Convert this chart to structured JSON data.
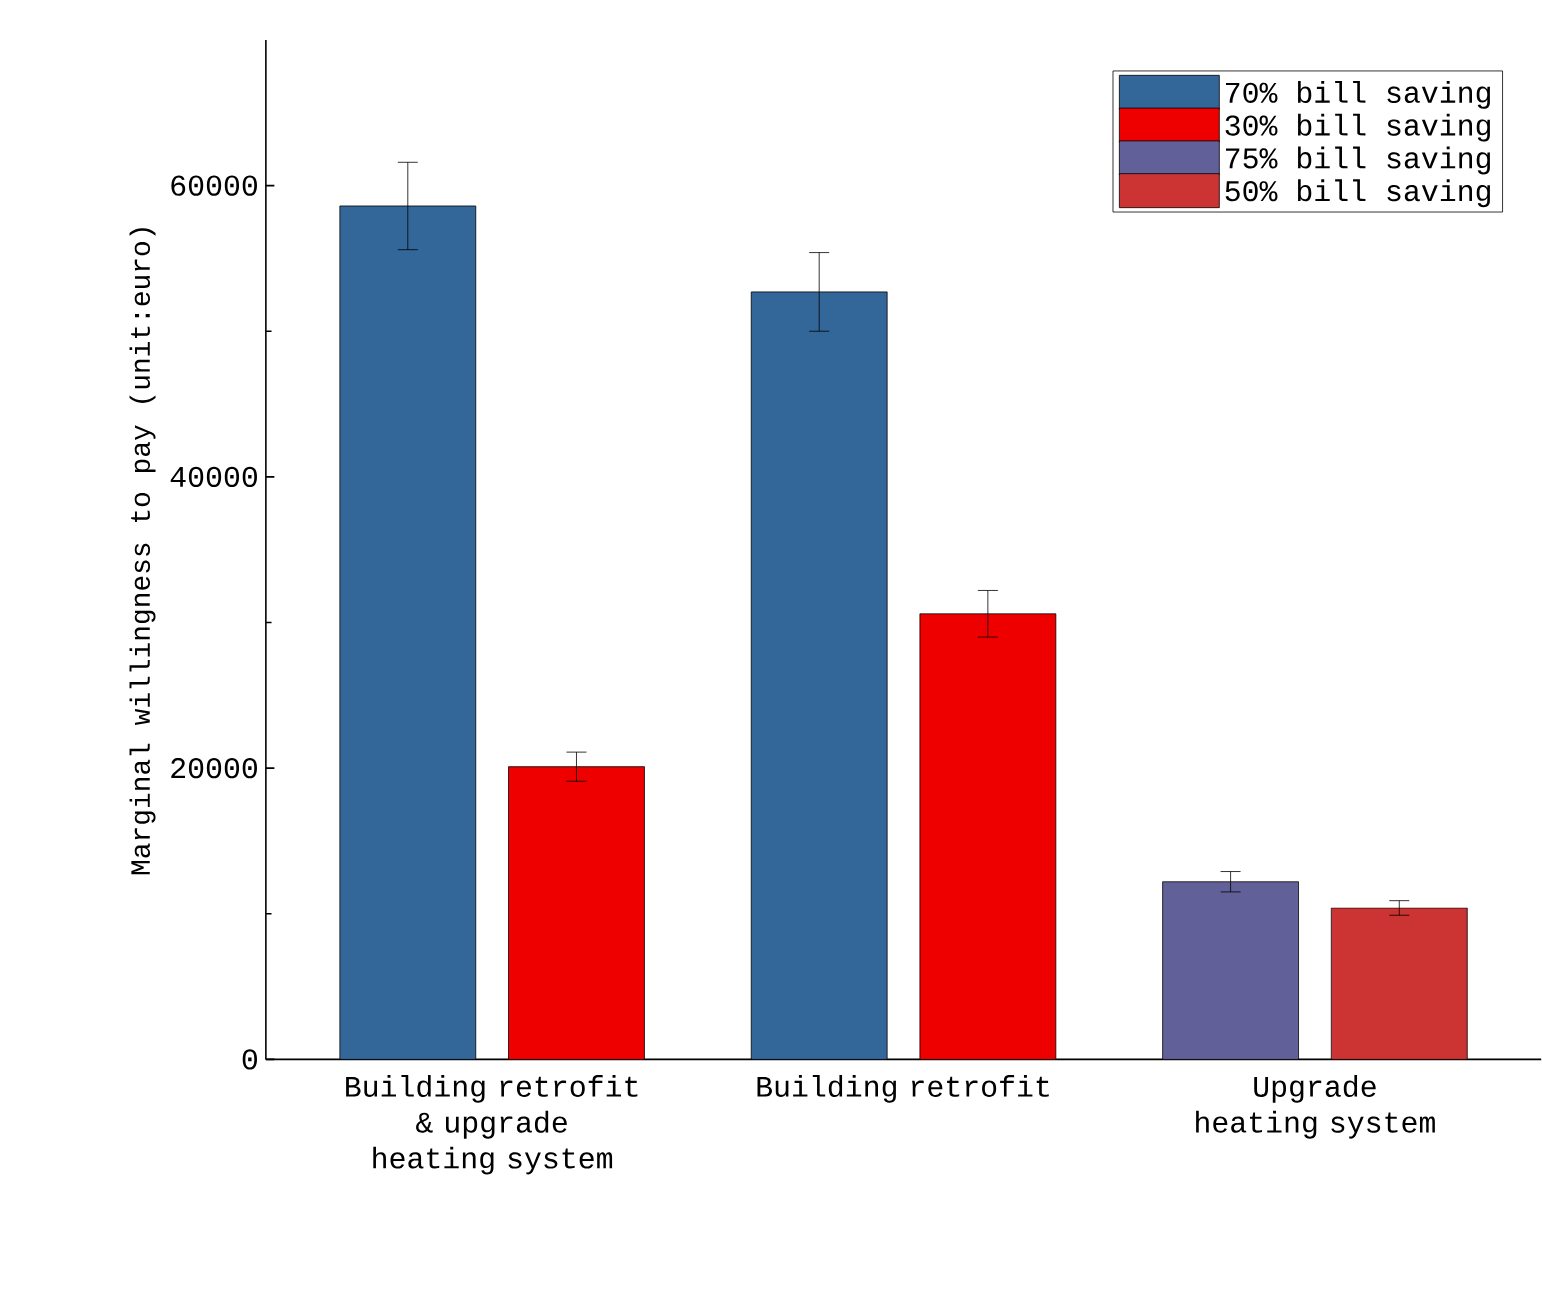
{
  "chart_data": {
    "type": "bar",
    "ylabel": "Marginal willingness to pay (unit:euro)",
    "categories": [
      "Building retrofit & upgrade heating system",
      "Building retrofit",
      "Upgrade heating system"
    ],
    "series": [
      {
        "name": "70% bill saving",
        "color": "#336699",
        "values": [
          58600,
          52700,
          null
        ],
        "errors": [
          3000,
          2700,
          null
        ]
      },
      {
        "name": "30% bill saving",
        "color": "#ee0000",
        "values": [
          20100,
          30600,
          null
        ],
        "errors": [
          1000,
          1600,
          null
        ]
      },
      {
        "name": "75% bill saving",
        "color": "#626099",
        "values": [
          null,
          null,
          12200
        ],
        "errors": [
          null,
          null,
          700
        ]
      },
      {
        "name": "50% bill saving",
        "color": "#cc3333",
        "values": [
          null,
          null,
          10400
        ],
        "errors": [
          null,
          null,
          500
        ]
      }
    ],
    "ylim": [
      0,
      70000
    ],
    "yticks": [
      0,
      20000,
      40000,
      60000
    ],
    "legend": "top right"
  }
}
